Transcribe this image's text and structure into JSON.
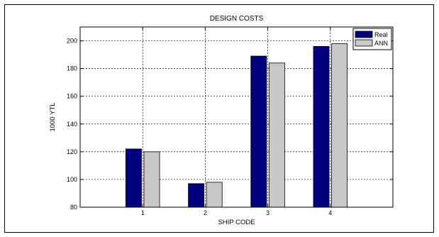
{
  "chart_data": {
    "type": "bar",
    "title": "DESIGN COSTS",
    "xlabel": "SHIP CODE",
    "ylabel": "1000 YTL",
    "categories": [
      "1",
      "2",
      "3",
      "4"
    ],
    "series": [
      {
        "name": "Real",
        "color": "#00007F",
        "values": [
          122,
          97,
          189,
          196
        ]
      },
      {
        "name": "ANN",
        "color": "#C8C8C8",
        "values": [
          120,
          98,
          184,
          198
        ]
      }
    ],
    "ylim": [
      80,
      210
    ],
    "xlim": [
      0,
      5
    ],
    "yticks": [
      80,
      100,
      120,
      140,
      160,
      180,
      200
    ],
    "grid": true,
    "legend_position": "top-right"
  }
}
